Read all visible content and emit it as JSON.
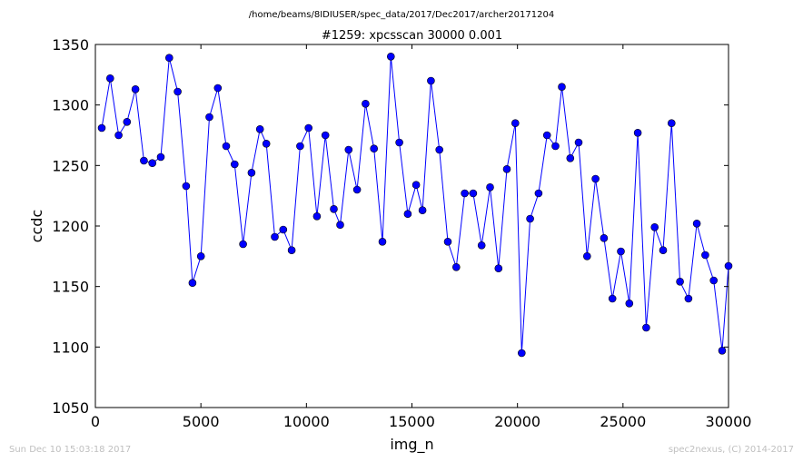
{
  "header": {
    "path": "/home/beams/8IDIUSER/spec_data/2017/Dec2017/archer20171204"
  },
  "footer": {
    "timestamp": "Sun Dec 10 15:03:18 2017",
    "credit": "spec2nexus, (C) 2014-2017"
  },
  "colors": {
    "series": "#0000ff",
    "axes": "#000000",
    "footer_text": "#bfbfbf"
  },
  "chart_data": {
    "type": "line",
    "title": "#1259: xpcsscan 30000 0.001",
    "xlabel": "img_n",
    "ylabel": "ccdc",
    "xlim": [
      0,
      30000
    ],
    "ylim": [
      1050,
      1350
    ],
    "x_ticks": [
      0,
      5000,
      10000,
      15000,
      20000,
      25000,
      30000
    ],
    "y_ticks": [
      1050,
      1100,
      1150,
      1200,
      1250,
      1300,
      1350
    ],
    "grid": false,
    "legend": "none",
    "markers": "circle",
    "series": [
      {
        "x": [
          300,
          700,
          1100,
          1500,
          1900,
          2300,
          2700,
          3100,
          3500,
          3900,
          4300,
          4600,
          5000,
          5400,
          5800,
          6200,
          6600,
          7000,
          7400,
          7800,
          8100,
          8500,
          8900,
          9300,
          9700,
          10100,
          10500,
          10900,
          11300,
          11600,
          12000,
          12400,
          12800,
          13200,
          13600,
          14000,
          14400,
          14800,
          15200,
          15500,
          15900,
          16300,
          16700,
          17100,
          17500,
          17900,
          18300,
          18700,
          19100,
          19500,
          19900,
          20200,
          20600,
          21000,
          21400,
          21800,
          22100,
          22500,
          22900,
          23300,
          23700,
          24100,
          24500,
          24900,
          25300,
          25700,
          26100,
          26500,
          26900,
          27300,
          27700,
          28100,
          28500,
          28900,
          29300,
          29700,
          30000
        ],
        "values": [
          1281,
          1322,
          1275,
          1286,
          1313,
          1254,
          1252,
          1257,
          1339,
          1311,
          1233,
          1153,
          1175,
          1290,
          1314,
          1266,
          1251,
          1185,
          1244,
          1280,
          1268,
          1191,
          1197,
          1180,
          1266,
          1281,
          1208,
          1275,
          1214,
          1201,
          1263,
          1230,
          1301,
          1264,
          1187,
          1340,
          1269,
          1210,
          1234,
          1213,
          1320,
          1263,
          1187,
          1166,
          1227,
          1227,
          1184,
          1232,
          1165,
          1247,
          1285,
          1095,
          1206,
          1227,
          1275,
          1266,
          1315,
          1256,
          1269,
          1175,
          1239,
          1190,
          1140,
          1179,
          1136,
          1277,
          1116,
          1199,
          1180,
          1285,
          1154,
          1140,
          1202,
          1176,
          1155,
          1097,
          1167
        ]
      }
    ]
  }
}
